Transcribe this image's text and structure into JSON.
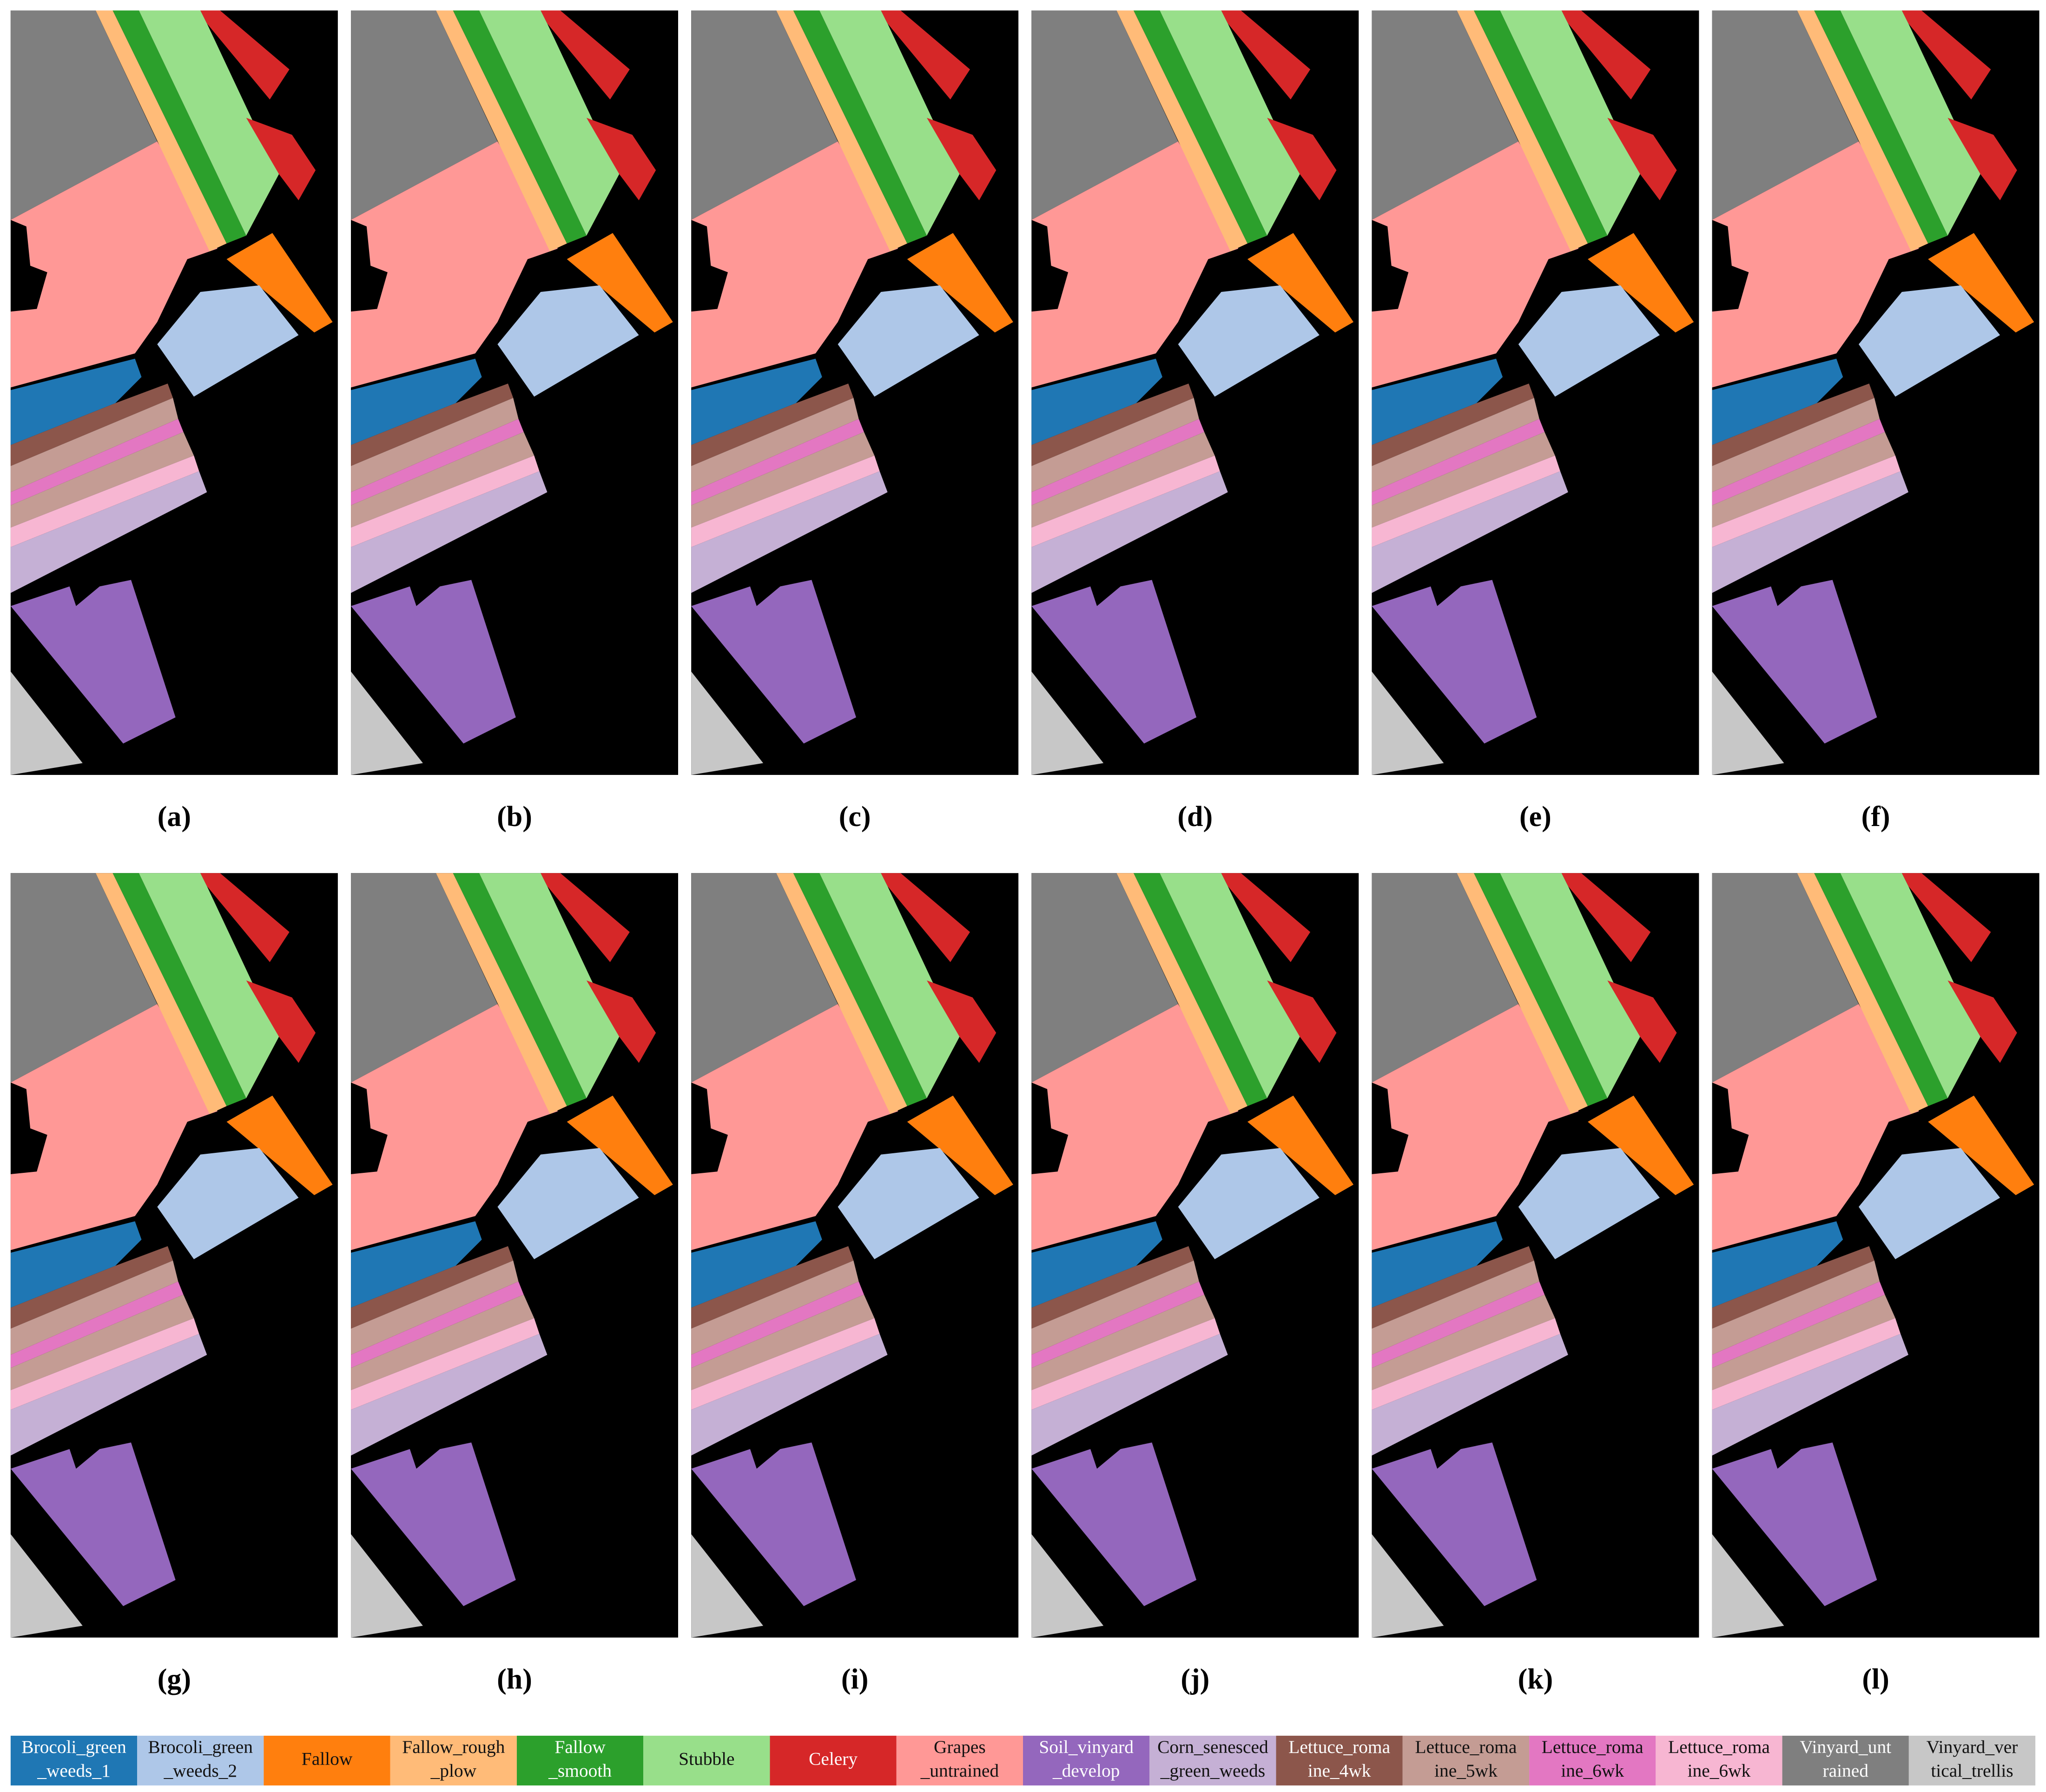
{
  "panels": [
    "(a)",
    "(b)",
    "(c)",
    "(d)",
    "(e)",
    "(f)",
    "(g)",
    "(h)",
    "(i)",
    "(j)",
    "(k)",
    "(l)"
  ],
  "legend": {
    "items": [
      {
        "lines": [
          "Brocoli_green",
          "_weeds_1"
        ],
        "color": "#1f77b4"
      },
      {
        "lines": [
          "Brocoli_green",
          "_weeds_2"
        ],
        "color": "#aec7e8"
      },
      {
        "lines": [
          "Fallow"
        ],
        "color": "#ff7f0e"
      },
      {
        "lines": [
          "Fallow_rough",
          "_plow"
        ],
        "color": "#ffbb78"
      },
      {
        "lines": [
          "Fallow",
          "_smooth"
        ],
        "color": "#2ca02c"
      },
      {
        "lines": [
          "Stubble"
        ],
        "color": "#98df8a"
      },
      {
        "lines": [
          "Celery"
        ],
        "color": "#d62728"
      },
      {
        "lines": [
          "Grapes",
          "_untrained"
        ],
        "color": "#ff9896"
      },
      {
        "lines": [
          "Soil_vinyard",
          "_develop"
        ],
        "color": "#9467bd"
      },
      {
        "lines": [
          "Corn_senesced",
          "_green_weeds"
        ],
        "color": "#c5b0d5"
      },
      {
        "lines": [
          "Lettuce_roma",
          "ine_4wk"
        ],
        "color": "#8c564b"
      },
      {
        "lines": [
          "Lettuce_roma",
          "ine_5wk"
        ],
        "color": "#c49c94"
      },
      {
        "lines": [
          "Lettuce_roma",
          "ine_6wk"
        ],
        "color": "#e377c2"
      },
      {
        "lines": [
          "Lettuce_roma",
          "ine_6wk"
        ],
        "color": "#f7b6d2"
      },
      {
        "lines": [
          "Vinyard_unt",
          "rained"
        ],
        "color": "#7f7f7f"
      },
      {
        "lines": [
          "Vinyard_ver",
          "tical_trellis"
        ],
        "color": "#c7c7c7"
      }
    ]
  }
}
